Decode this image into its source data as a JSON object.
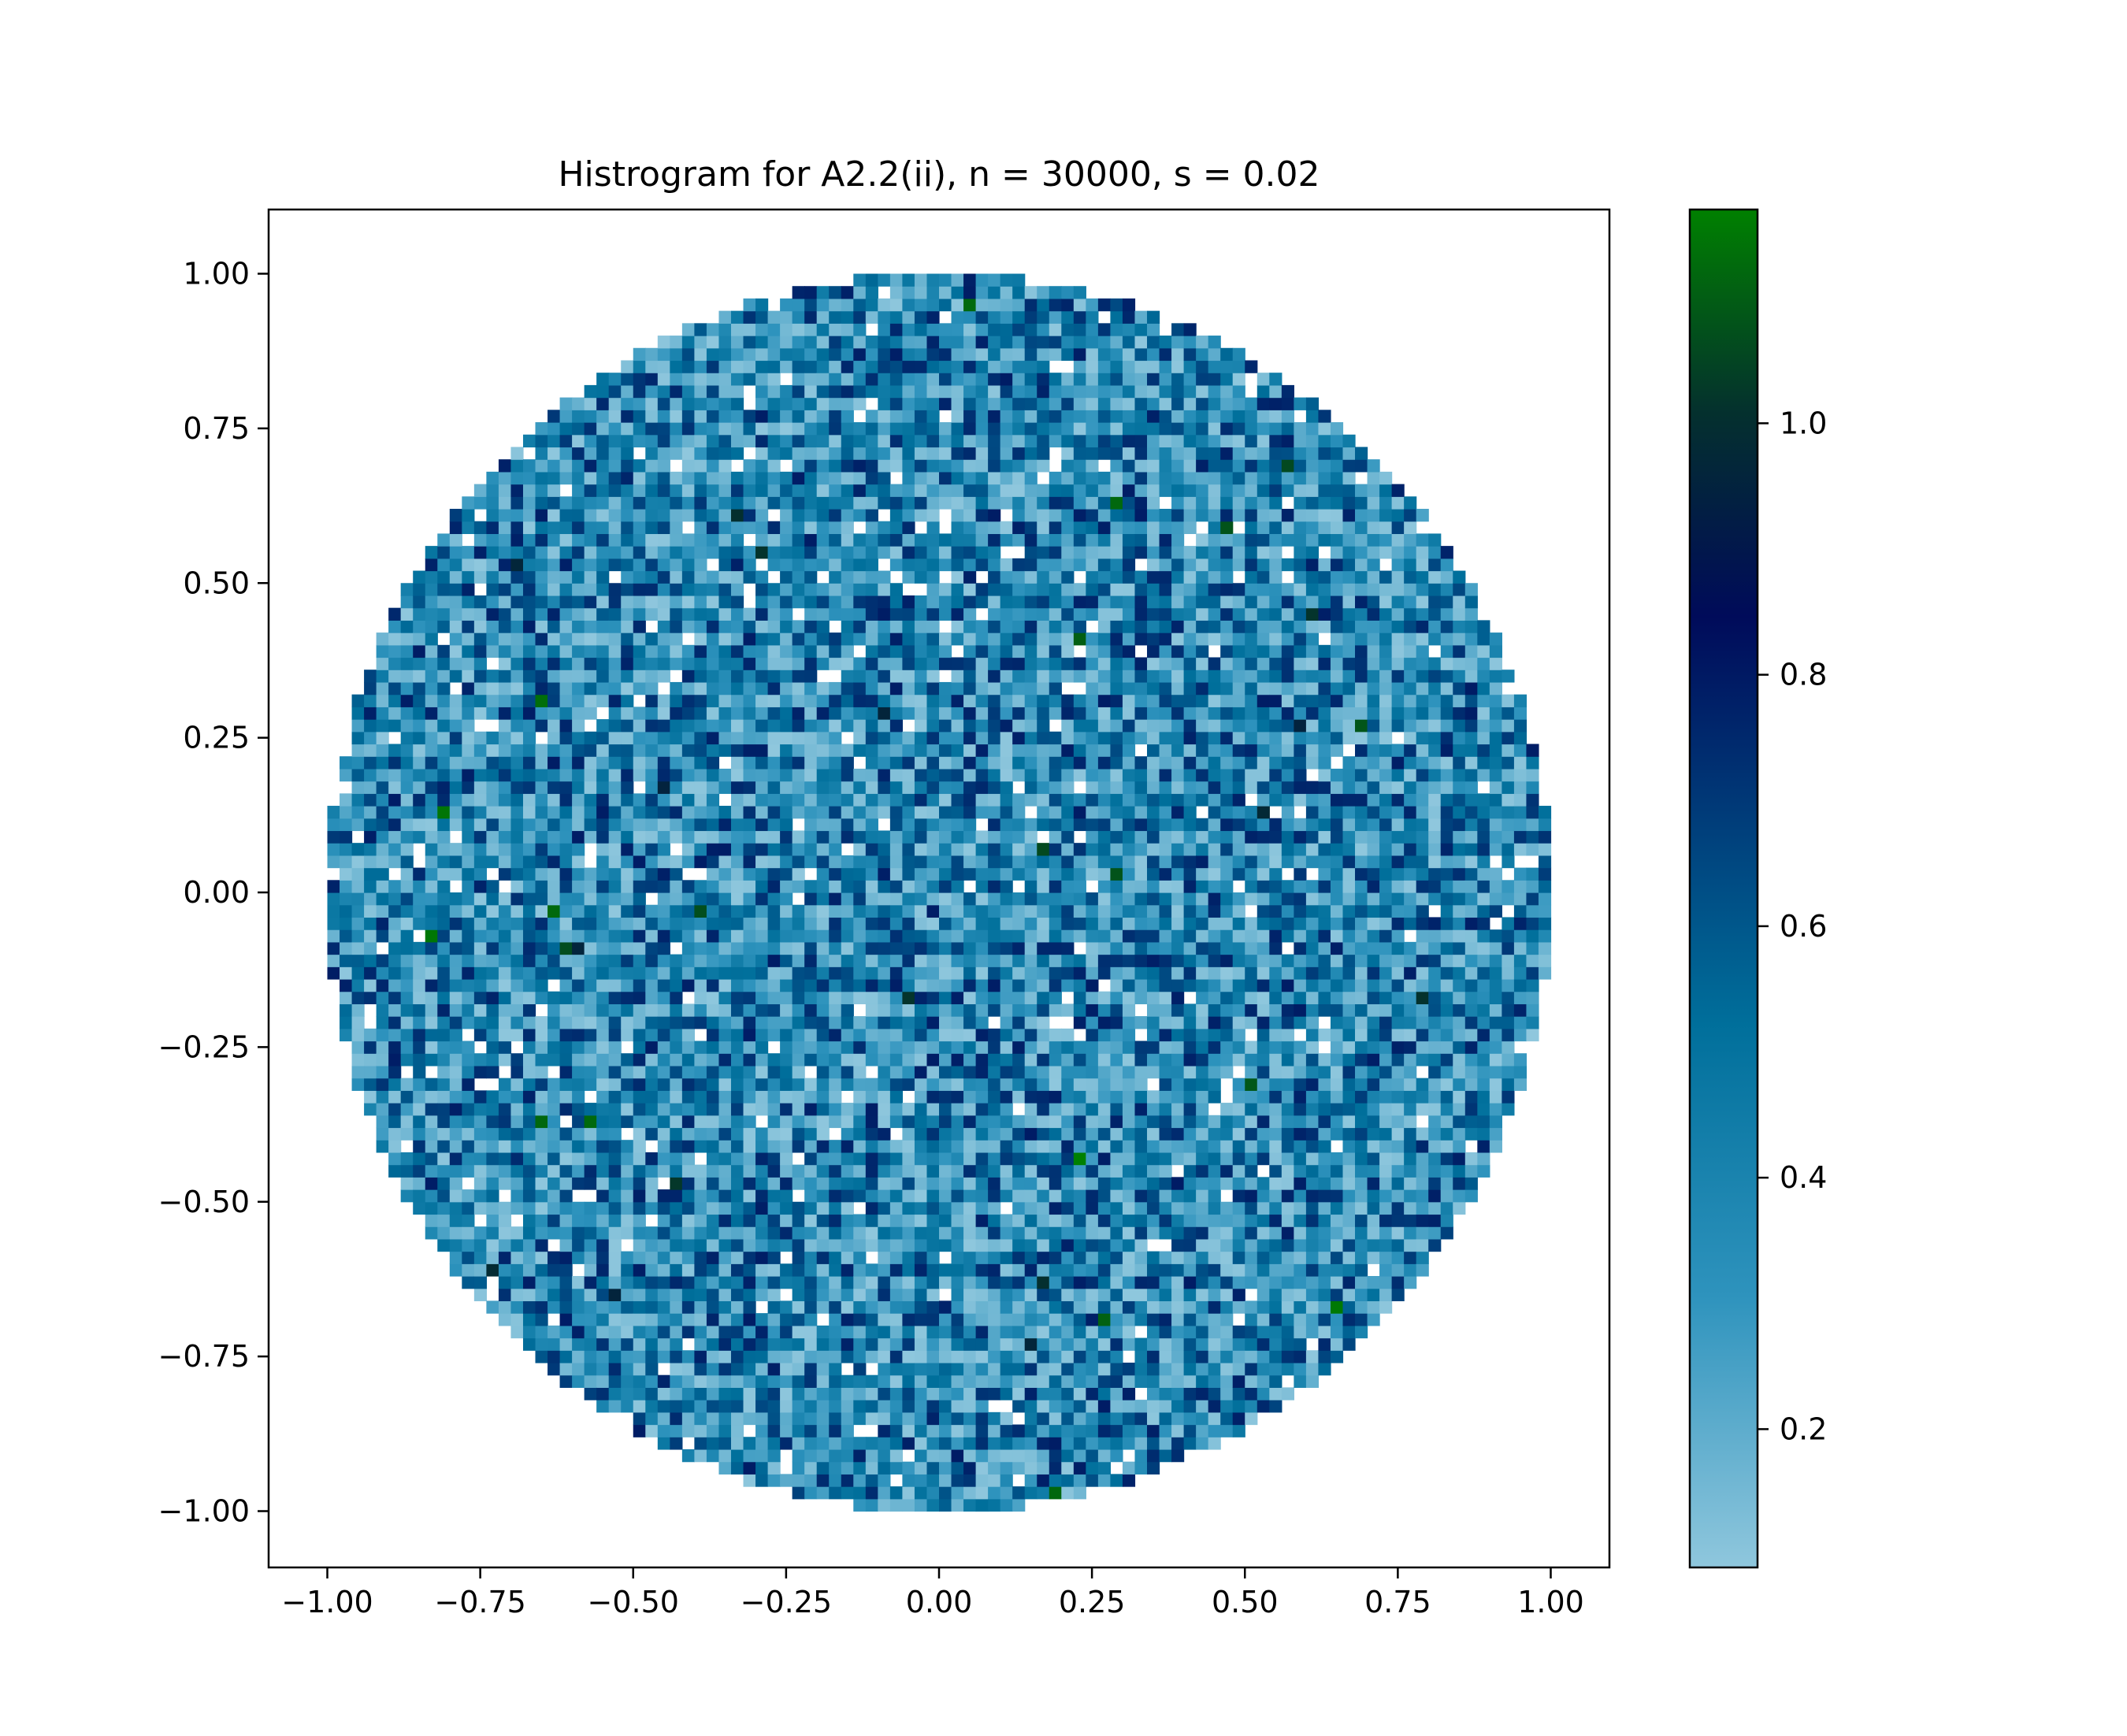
{
  "chart_data": {
    "type": "heatmap",
    "title": "Histrogram for A2.2(ii),  n = 30000, s = 0.02",
    "xlabel": "",
    "ylabel": "",
    "xlim": [
      -1.1,
      1.1
    ],
    "ylim": [
      -1.1,
      1.1
    ],
    "x_ticks": [
      -1.0,
      -0.75,
      -0.5,
      -0.25,
      0.0,
      0.25,
      0.5,
      0.75,
      1.0
    ],
    "x_tick_labels": [
      "−1.00",
      "−0.75",
      "−0.50",
      "−0.25",
      "0.00",
      "0.25",
      "0.50",
      "0.75",
      "1.00"
    ],
    "y_ticks": [
      1.0,
      0.75,
      0.5,
      0.25,
      0.0,
      -0.25,
      -0.5,
      -0.75,
      -1.0
    ],
    "y_tick_labels": [
      "1.00",
      "0.75",
      "0.50",
      "0.25",
      "0.00",
      "−0.25",
      "−0.50",
      "−0.75",
      "−1.00"
    ],
    "grid": false,
    "bin_width": 0.02,
    "support": "unit disk",
    "value_range": [
      0.09,
      1.17
    ],
    "typical_value": 0.36,
    "colorbar": {
      "ticks": [
        0.2,
        0.4,
        0.6,
        0.8,
        1.0
      ],
      "tick_labels": [
        "0.2",
        "0.4",
        "0.6",
        "0.8",
        "1.0"
      ],
      "range": [
        0.09,
        1.17
      ],
      "colormap": "ocean_r",
      "stops": [
        {
          "v": 0.0,
          "color": "#8fc7dd"
        },
        {
          "v": 0.2,
          "color": "#2e93bd"
        },
        {
          "v": 0.4,
          "color": "#006f9b"
        },
        {
          "v": 0.55,
          "color": "#003d7a"
        },
        {
          "v": 0.7,
          "color": "#000b5a"
        },
        {
          "v": 0.85,
          "color": "#04302e"
        },
        {
          "v": 1.0,
          "color": "#008000"
        }
      ]
    }
  }
}
